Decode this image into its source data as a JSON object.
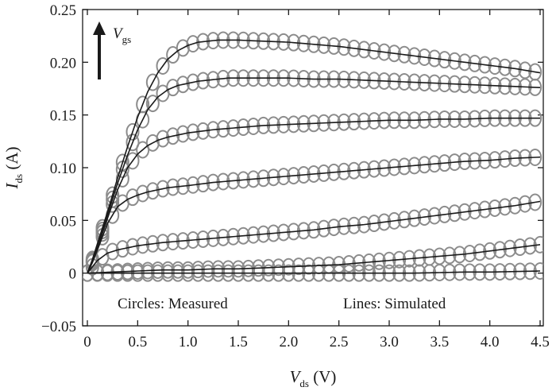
{
  "chart_data": {
    "type": "line",
    "title": "",
    "xlabel": {
      "main": "V",
      "sub": "ds",
      "unit": " (V)"
    },
    "ylabel": {
      "main": "I",
      "sub": "ds",
      "unit": " (A)"
    },
    "xlim": [
      -0.05,
      4.5
    ],
    "ylim": [
      -0.05,
      0.25
    ],
    "xticks": [
      0,
      0.5,
      1.0,
      1.5,
      2.0,
      2.5,
      3.0,
      3.5,
      4.0,
      4.5
    ],
    "xtick_labels": [
      "0",
      "0.5",
      "1.0",
      "1.5",
      "2.0",
      "2.5",
      "3.0",
      "3.5",
      "4.0",
      "4.5"
    ],
    "yticks": [
      -0.05,
      0,
      0.05,
      0.1,
      0.15,
      0.2,
      0.25
    ],
    "ytick_labels": [
      "−0.05",
      "0",
      "0.05",
      "0.10",
      "0.15",
      "0.20",
      "0.25"
    ],
    "grid": false,
    "annotations": {
      "measured": "Circles: Measured",
      "simulated": "Lines: Simulated",
      "arrow": {
        "main": "V",
        "sub": "gs"
      }
    },
    "marker_color": "#8c8c8c",
    "line_color": "#1a1a1a",
    "series": [
      {
        "x": [
          0,
          0.05,
          0.1,
          0.2,
          0.3,
          0.4,
          0.5,
          0.6,
          0.7,
          0.8,
          0.9,
          1.0,
          1.1,
          1.2,
          1.3,
          1.4,
          1.5,
          1.75,
          2.0,
          2.25,
          2.5,
          2.75,
          3.0,
          3.25,
          3.5,
          3.75,
          4.0,
          4.25,
          4.5
        ],
        "y": [
          0,
          0.013,
          0.028,
          0.058,
          0.09,
          0.12,
          0.148,
          0.172,
          0.19,
          0.203,
          0.211,
          0.216,
          0.219,
          0.22,
          0.221,
          0.221,
          0.221,
          0.22,
          0.219,
          0.217,
          0.215,
          0.212,
          0.209,
          0.206,
          0.203,
          0.2,
          0.197,
          0.194,
          0.19
        ]
      },
      {
        "x": [
          0,
          0.05,
          0.1,
          0.2,
          0.3,
          0.4,
          0.5,
          0.6,
          0.7,
          0.8,
          0.9,
          1.0,
          1.1,
          1.2,
          1.3,
          1.4,
          1.5,
          1.75,
          2.0,
          2.25,
          2.5,
          2.75,
          3.0,
          3.25,
          3.5,
          3.75,
          4.0,
          4.25,
          4.5
        ],
        "y": [
          0,
          0.012,
          0.026,
          0.055,
          0.085,
          0.112,
          0.136,
          0.155,
          0.167,
          0.174,
          0.178,
          0.18,
          0.182,
          0.183,
          0.184,
          0.185,
          0.185,
          0.185,
          0.185,
          0.184,
          0.184,
          0.183,
          0.182,
          0.181,
          0.18,
          0.179,
          0.178,
          0.177,
          0.176
        ]
      },
      {
        "x": [
          0,
          0.05,
          0.1,
          0.2,
          0.3,
          0.4,
          0.5,
          0.6,
          0.7,
          0.8,
          0.9,
          1.0,
          1.25,
          1.5,
          1.75,
          2.0,
          2.25,
          2.5,
          2.75,
          3.0,
          3.25,
          3.5,
          3.75,
          4.0,
          4.25,
          4.5
        ],
        "y": [
          0,
          0.011,
          0.024,
          0.052,
          0.079,
          0.1,
          0.113,
          0.121,
          0.126,
          0.129,
          0.131,
          0.133,
          0.136,
          0.138,
          0.14,
          0.141,
          0.142,
          0.143,
          0.144,
          0.145,
          0.145,
          0.146,
          0.146,
          0.147,
          0.147,
          0.147
        ]
      },
      {
        "x": [
          0,
          0.05,
          0.1,
          0.2,
          0.3,
          0.4,
          0.5,
          0.6,
          0.7,
          0.8,
          0.9,
          1.0,
          1.25,
          1.5,
          1.75,
          2.0,
          2.25,
          2.5,
          2.75,
          3.0,
          3.25,
          3.5,
          3.75,
          4.0,
          4.25,
          4.5
        ],
        "y": [
          0,
          0.01,
          0.022,
          0.047,
          0.063,
          0.07,
          0.074,
          0.077,
          0.079,
          0.081,
          0.082,
          0.083,
          0.086,
          0.088,
          0.09,
          0.092,
          0.094,
          0.096,
          0.098,
          0.1,
          0.102,
          0.104,
          0.106,
          0.107,
          0.109,
          0.11
        ]
      },
      {
        "x": [
          0,
          0.1,
          0.2,
          0.3,
          0.4,
          0.5,
          0.75,
          1.0,
          1.25,
          1.5,
          1.75,
          2.0,
          2.25,
          2.5,
          2.75,
          3.0,
          3.25,
          3.5,
          3.75,
          4.0,
          4.25,
          4.5
        ],
        "y": [
          0,
          0.012,
          0.019,
          0.022,
          0.024,
          0.026,
          0.029,
          0.031,
          0.033,
          0.035,
          0.037,
          0.039,
          0.041,
          0.044,
          0.046,
          0.049,
          0.052,
          0.055,
          0.058,
          0.061,
          0.064,
          0.068
        ]
      },
      {
        "x": [
          0,
          0.25,
          0.5,
          0.75,
          1.0,
          1.25,
          1.5,
          1.75,
          2.0,
          2.25,
          2.5,
          2.75,
          3.0,
          3.25,
          3.5,
          3.75,
          4.0,
          4.25,
          4.5
        ],
        "y": [
          0,
          0.001,
          0.002,
          0.003,
          0.003,
          0.004,
          0.004,
          0.005,
          0.006,
          0.007,
          0.008,
          0.01,
          0.012,
          0.014,
          0.016,
          0.018,
          0.021,
          0.024,
          0.027
        ]
      },
      {
        "x": [
          0,
          0.25,
          0.5,
          0.75,
          1.0,
          1.25,
          1.5,
          1.75,
          2.0,
          2.25,
          2.5,
          2.75,
          3.0,
          3.25,
          3.5,
          3.75,
          4.0,
          4.25,
          4.5
        ],
        "y": [
          0,
          0,
          0,
          0,
          0,
          0,
          0,
          0,
          0,
          0,
          0,
          0,
          0,
          0,
          0.0005,
          0.001,
          0.001,
          0.0015,
          0.002
        ]
      }
    ]
  }
}
